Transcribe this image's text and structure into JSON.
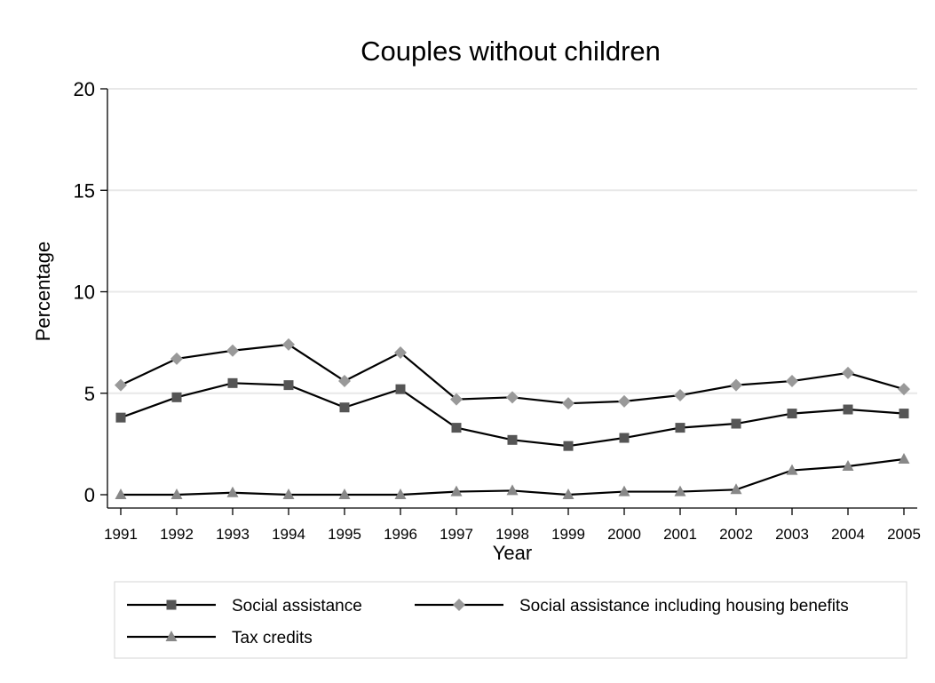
{
  "chart_data": {
    "type": "line",
    "title": "Couples without children",
    "xlabel": "Year",
    "ylabel": "Percentage",
    "ylim": [
      0,
      20
    ],
    "yticks": [
      0,
      5,
      10,
      15,
      20
    ],
    "grid": true,
    "legend_position": "bottom",
    "x": [
      1991,
      1992,
      1993,
      1994,
      1995,
      1996,
      1997,
      1998,
      1999,
      2000,
      2001,
      2002,
      2003,
      2004,
      2005
    ],
    "xtick_labels": [
      "1991",
      "1992",
      "1993",
      "1994",
      "1995",
      "1996",
      "1997",
      "1998",
      "1999",
      "2000",
      "2001",
      "2002",
      "2003",
      "2004",
      "2005"
    ],
    "ytick_labels": [
      "0",
      "5",
      "10",
      "15",
      "20"
    ],
    "series": [
      {
        "name": "Social assistance",
        "marker": "square",
        "color": "#555555",
        "values": [
          3.8,
          4.8,
          5.5,
          5.4,
          4.3,
          5.2,
          3.3,
          2.7,
          2.4,
          2.8,
          3.3,
          3.5,
          4.0,
          4.2,
          4.0
        ]
      },
      {
        "name": "Social assistance including housing benefits",
        "marker": "diamond",
        "color": "#999999",
        "values": [
          5.4,
          6.7,
          7.1,
          7.4,
          5.6,
          7.0,
          4.7,
          4.8,
          4.5,
          4.6,
          4.9,
          5.4,
          5.6,
          6.0,
          5.2
        ]
      },
      {
        "name": "Tax credits",
        "marker": "triangle",
        "color": "#888888",
        "values": [
          0.0,
          0.0,
          0.1,
          0.0,
          0.0,
          0.0,
          0.15,
          0.2,
          0.0,
          0.15,
          0.15,
          0.25,
          1.2,
          1.4,
          1.75
        ]
      }
    ]
  }
}
